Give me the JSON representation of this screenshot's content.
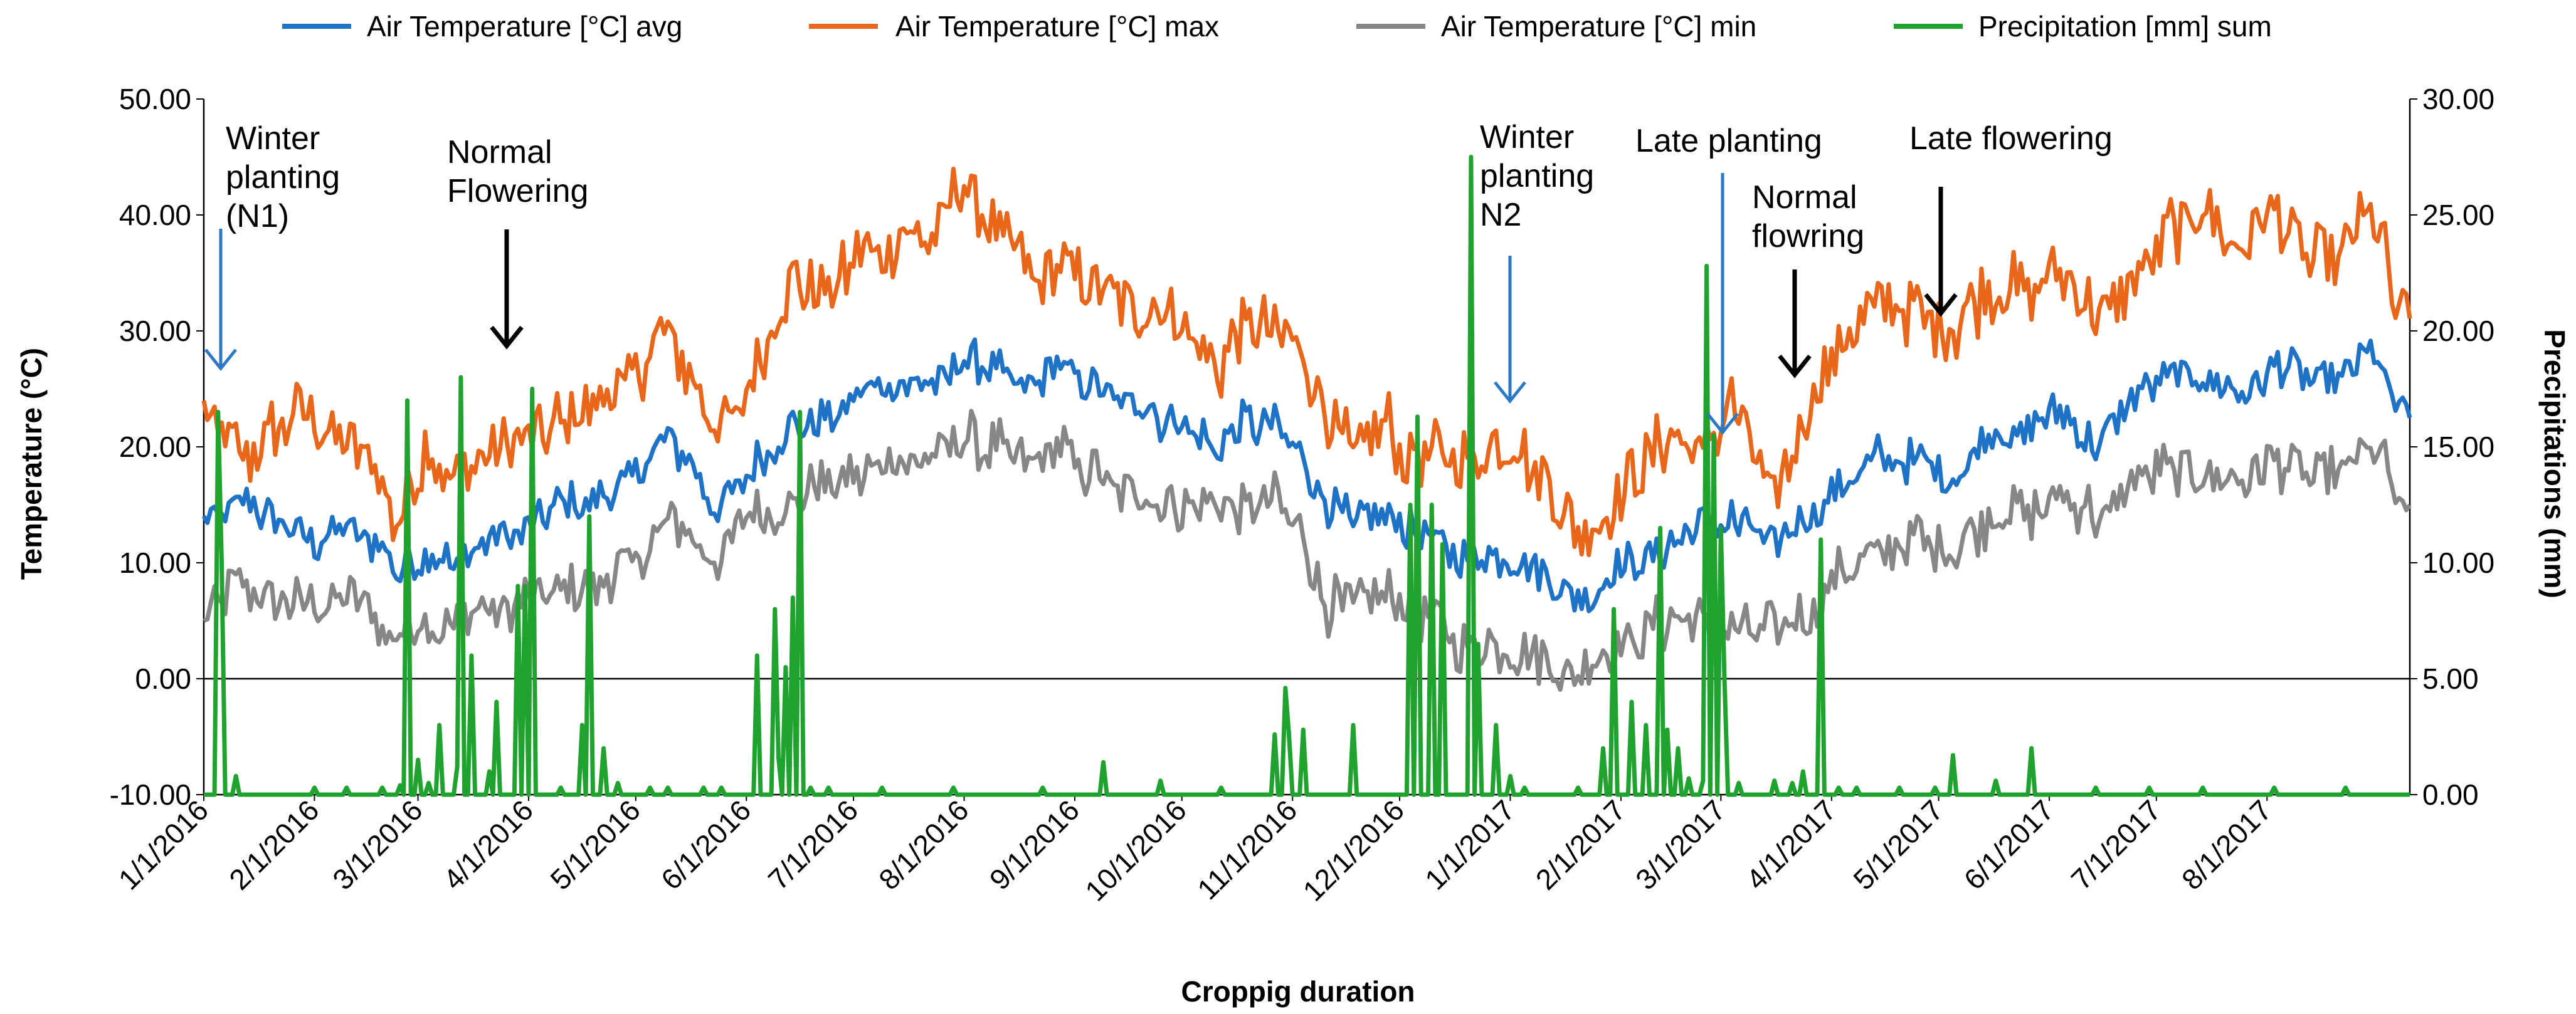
{
  "chart_data": {
    "type": "line",
    "title": "",
    "xlabel": "Croppig duration",
    "ylabel": "Temperature (°C)",
    "y2label": "Precipitations (mm)",
    "ylim": [
      -10,
      50
    ],
    "y2lim": [
      0,
      30
    ],
    "yticks": [
      "-10.00",
      "0.00",
      "10.00",
      "20.00",
      "30.00",
      "40.00",
      "50.00"
    ],
    "y2ticks": [
      "0.00",
      "5.00",
      "10.00",
      "15.00",
      "20.00",
      "25.00",
      "30.00"
    ],
    "x_start": "2016-01-01",
    "x_end": "2017-09-10",
    "x_ticks": [
      "1/1/2016",
      "2/1/2016",
      "3/1/2016",
      "4/1/2016",
      "5/1/2016",
      "6/1/2016",
      "7/1/2016",
      "8/1/2016",
      "9/1/2016",
      "10/1/2016",
      "11/1/2016",
      "12/1/2016",
      "1/1/2017",
      "2/1/2017",
      "3/1/2017",
      "4/1/2017",
      "5/1/2017",
      "6/1/2017",
      "7/1/2017",
      "8/1/2017"
    ],
    "legend": [
      "Air Temperature [°C] avg",
      "Air Temperature [°C] max",
      "Air Temperature [°C] min",
      "Precipitation [mm] sum"
    ],
    "colors": {
      "avg": "#1f73c6",
      "max": "#e8671b",
      "min": "#878787",
      "precip": "#1fa22e",
      "arrow_blue": "#2b78c5",
      "arrow_black": "#000000"
    },
    "series": [
      {
        "name": "Air Temperature [°C] max",
        "axis": "left",
        "anchors": [
          [
            0,
            24
          ],
          [
            10,
            19
          ],
          [
            20,
            22
          ],
          [
            30,
            23
          ],
          [
            40,
            21
          ],
          [
            48,
            18
          ],
          [
            55,
            13
          ],
          [
            62,
            20
          ],
          [
            70,
            16
          ],
          [
            80,
            20
          ],
          [
            90,
            21
          ],
          [
            100,
            22
          ],
          [
            110,
            24
          ],
          [
            120,
            26
          ],
          [
            130,
            30
          ],
          [
            138,
            25
          ],
          [
            143,
            21
          ],
          [
            150,
            23
          ],
          [
            158,
            29
          ],
          [
            165,
            34
          ],
          [
            175,
            33
          ],
          [
            185,
            37
          ],
          [
            195,
            38
          ],
          [
            205,
            38
          ],
          [
            213,
            42
          ],
          [
            221,
            39
          ],
          [
            230,
            35
          ],
          [
            240,
            36
          ],
          [
            247,
            34
          ],
          [
            255,
            33
          ],
          [
            265,
            32
          ],
          [
            275,
            31
          ],
          [
            283,
            27
          ],
          [
            292,
            30
          ],
          [
            300,
            31
          ],
          [
            308,
            28
          ],
          [
            315,
            23
          ],
          [
            322,
            19
          ],
          [
            330,
            22
          ],
          [
            337,
            20
          ],
          [
            345,
            19
          ],
          [
            352,
            18
          ],
          [
            360,
            20
          ],
          [
            368,
            20
          ],
          [
            375,
            17
          ],
          [
            382,
            14
          ],
          [
            388,
            12
          ],
          [
            395,
            16
          ],
          [
            405,
            19
          ],
          [
            412,
            21
          ],
          [
            420,
            20
          ],
          [
            428,
            24
          ],
          [
            432,
            22
          ],
          [
            440,
            15
          ],
          [
            450,
            23
          ],
          [
            460,
            30
          ],
          [
            470,
            32
          ],
          [
            480,
            32
          ],
          [
            490,
            30
          ],
          [
            500,
            34
          ],
          [
            510,
            33
          ],
          [
            520,
            36
          ],
          [
            530,
            31
          ],
          [
            540,
            35
          ],
          [
            550,
            38
          ],
          [
            560,
            40
          ],
          [
            570,
            37
          ],
          [
            580,
            40
          ],
          [
            590,
            36
          ],
          [
            600,
            37
          ],
          [
            608,
            40
          ],
          [
            615,
            31
          ]
        ]
      },
      {
        "name": "Air Temperature [°C] avg",
        "axis": "left",
        "anchors": [
          [
            0,
            13
          ],
          [
            10,
            15
          ],
          [
            20,
            14
          ],
          [
            30,
            12
          ],
          [
            40,
            13
          ],
          [
            48,
            12
          ],
          [
            55,
            9
          ],
          [
            62,
            11
          ],
          [
            70,
            10
          ],
          [
            80,
            12
          ],
          [
            90,
            13
          ],
          [
            100,
            15
          ],
          [
            110,
            15
          ],
          [
            120,
            17
          ],
          [
            130,
            21
          ],
          [
            138,
            18
          ],
          [
            143,
            15
          ],
          [
            150,
            17
          ],
          [
            158,
            20
          ],
          [
            165,
            22
          ],
          [
            175,
            22
          ],
          [
            185,
            25
          ],
          [
            195,
            25
          ],
          [
            205,
            25
          ],
          [
            213,
            28
          ],
          [
            221,
            27
          ],
          [
            230,
            25
          ],
          [
            240,
            27
          ],
          [
            247,
            25
          ],
          [
            255,
            24
          ],
          [
            265,
            23
          ],
          [
            275,
            22
          ],
          [
            283,
            20
          ],
          [
            292,
            22
          ],
          [
            300,
            22
          ],
          [
            308,
            19
          ],
          [
            315,
            15
          ],
          [
            322,
            13
          ],
          [
            330,
            14
          ],
          [
            337,
            13
          ],
          [
            345,
            12
          ],
          [
            352,
            10
          ],
          [
            360,
            11
          ],
          [
            368,
            10
          ],
          [
            375,
            9
          ],
          [
            382,
            8
          ],
          [
            388,
            7
          ],
          [
            395,
            9
          ],
          [
            405,
            11
          ],
          [
            412,
            12
          ],
          [
            420,
            13
          ],
          [
            428,
            14
          ],
          [
            432,
            13
          ],
          [
            440,
            11
          ],
          [
            450,
            14
          ],
          [
            460,
            17
          ],
          [
            470,
            19
          ],
          [
            480,
            19
          ],
          [
            490,
            17
          ],
          [
            500,
            21
          ],
          [
            510,
            21
          ],
          [
            520,
            23
          ],
          [
            530,
            20
          ],
          [
            540,
            24
          ],
          [
            550,
            26
          ],
          [
            560,
            26
          ],
          [
            570,
            24
          ],
          [
            580,
            27
          ],
          [
            590,
            25
          ],
          [
            600,
            26
          ],
          [
            608,
            28
          ],
          [
            615,
            23
          ]
        ]
      },
      {
        "name": "Air Temperature [°C] min",
        "axis": "left",
        "anchors": [
          [
            0,
            5
          ],
          [
            10,
            8
          ],
          [
            20,
            7
          ],
          [
            30,
            6
          ],
          [
            40,
            7
          ],
          [
            48,
            5
          ],
          [
            55,
            4
          ],
          [
            62,
            5
          ],
          [
            70,
            4
          ],
          [
            80,
            6
          ],
          [
            90,
            7
          ],
          [
            100,
            8
          ],
          [
            110,
            8
          ],
          [
            120,
            10
          ],
          [
            130,
            14
          ],
          [
            138,
            12
          ],
          [
            143,
            10
          ],
          [
            150,
            13
          ],
          [
            158,
            15
          ],
          [
            165,
            16
          ],
          [
            175,
            17
          ],
          [
            185,
            18
          ],
          [
            195,
            19
          ],
          [
            205,
            19
          ],
          [
            213,
            21
          ],
          [
            221,
            20
          ],
          [
            230,
            18
          ],
          [
            240,
            20
          ],
          [
            247,
            18
          ],
          [
            255,
            17
          ],
          [
            265,
            16
          ],
          [
            275,
            15
          ],
          [
            283,
            14
          ],
          [
            292,
            15
          ],
          [
            300,
            15
          ],
          [
            308,
            12
          ],
          [
            315,
            6
          ],
          [
            322,
            6
          ],
          [
            330,
            8
          ],
          [
            337,
            6
          ],
          [
            345,
            5
          ],
          [
            352,
            3
          ],
          [
            360,
            3
          ],
          [
            368,
            2
          ],
          [
            375,
            2
          ],
          [
            382,
            0
          ],
          [
            388,
            1
          ],
          [
            395,
            3
          ],
          [
            405,
            4
          ],
          [
            412,
            5
          ],
          [
            420,
            5
          ],
          [
            428,
            4
          ],
          [
            432,
            5
          ],
          [
            440,
            4
          ],
          [
            450,
            6
          ],
          [
            460,
            9
          ],
          [
            470,
            11
          ],
          [
            480,
            12
          ],
          [
            490,
            11
          ],
          [
            500,
            14
          ],
          [
            510,
            14
          ],
          [
            520,
            16
          ],
          [
            530,
            14
          ],
          [
            540,
            17
          ],
          [
            550,
            18
          ],
          [
            560,
            18
          ],
          [
            570,
            17
          ],
          [
            580,
            19
          ],
          [
            590,
            17
          ],
          [
            600,
            18
          ],
          [
            608,
            20
          ],
          [
            615,
            15
          ]
        ]
      },
      {
        "name": "Precipitation [mm] sum",
        "axis": "right",
        "baseline": 0,
        "events": [
          [
            4,
            16.5
          ],
          [
            5,
            10
          ],
          [
            9,
            0.8
          ],
          [
            31,
            0.3
          ],
          [
            40,
            0.3
          ],
          [
            50,
            0.3
          ],
          [
            55,
            0.4
          ],
          [
            57,
            17
          ],
          [
            60,
            1.5
          ],
          [
            63,
            0.5
          ],
          [
            66,
            3
          ],
          [
            71,
            1.2
          ],
          [
            72,
            18
          ],
          [
            75,
            6
          ],
          [
            80,
            1
          ],
          [
            82,
            4
          ],
          [
            88,
            9
          ],
          [
            90,
            9
          ],
          [
            92,
            17.5
          ],
          [
            100,
            0.3
          ],
          [
            106,
            3
          ],
          [
            108,
            12
          ],
          [
            112,
            2
          ],
          [
            116,
            0.5
          ],
          [
            125,
            0.3
          ],
          [
            130,
            0.3
          ],
          [
            140,
            0.3
          ],
          [
            145,
            0.3
          ],
          [
            155,
            6
          ],
          [
            160,
            8
          ],
          [
            161,
            1.6
          ],
          [
            163,
            5.5
          ],
          [
            165,
            8.5
          ],
          [
            167,
            16.5
          ],
          [
            170,
            0.3
          ],
          [
            175,
            0.3
          ],
          [
            190,
            0.3
          ],
          [
            210,
            0.3
          ],
          [
            235,
            0.3
          ],
          [
            252,
            1.4
          ],
          [
            268,
            0.6
          ],
          [
            285,
            0.3
          ],
          [
            300,
            2.6
          ],
          [
            303,
            4.6
          ],
          [
            304,
            2.6
          ],
          [
            308,
            2.8
          ],
          [
            322,
            3
          ],
          [
            338,
            12.5
          ],
          [
            340,
            16.3
          ],
          [
            344,
            12.5
          ],
          [
            347,
            10.8
          ],
          [
            355,
            27.5
          ],
          [
            357,
            6.5
          ],
          [
            362,
            3
          ],
          [
            366,
            0.8
          ],
          [
            370,
            0.3
          ],
          [
            385,
            0.3
          ],
          [
            392,
            2
          ],
          [
            395,
            8
          ],
          [
            400,
            4
          ],
          [
            404,
            3
          ],
          [
            408,
            11.5
          ],
          [
            410,
            2.8
          ],
          [
            413,
            2
          ],
          [
            416,
            0.7
          ],
          [
            420,
            0.6
          ],
          [
            421,
            22.8
          ],
          [
            423,
            15.5
          ],
          [
            425,
            11.5
          ],
          [
            426,
            5
          ],
          [
            430,
            0.5
          ],
          [
            440,
            0.6
          ],
          [
            445,
            0.5
          ],
          [
            448,
            1
          ],
          [
            453,
            11
          ],
          [
            458,
            0.3
          ],
          [
            463,
            0.3
          ],
          [
            475,
            0.3
          ],
          [
            485,
            0.3
          ],
          [
            490,
            1.7
          ],
          [
            502,
            0.6
          ],
          [
            512,
            2
          ],
          [
            530,
            0.3
          ],
          [
            545,
            0.3
          ],
          [
            560,
            0.3
          ],
          [
            580,
            0.3
          ],
          [
            600,
            0.3
          ]
        ]
      }
    ],
    "annotations": [
      {
        "lines": [
          "Winter",
          "planting",
          "(N1)"
        ],
        "arrow": "blue"
      },
      {
        "lines": [
          "Normal",
          "Flowering"
        ],
        "arrow": "black"
      },
      {
        "lines": [
          "Winter",
          "planting",
          "N2"
        ],
        "arrow": "blue"
      },
      {
        "lines": [
          "Late planting"
        ],
        "arrow": "blue"
      },
      {
        "lines": [
          "Normal",
          "flowring"
        ],
        "arrow": "black"
      },
      {
        "lines": [
          "Late flowering"
        ],
        "arrow": "black"
      }
    ]
  }
}
